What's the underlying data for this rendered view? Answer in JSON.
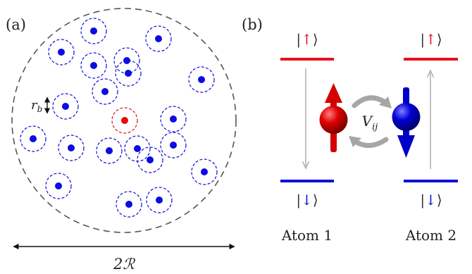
{
  "panel_a": {
    "label": "(a)",
    "radius_label": "r",
    "radius_sub": "b",
    "width_label": "2ℛ"
  },
  "panel_b": {
    "label": "(b)",
    "state_up": "|↑⟩",
    "state_down": "|↓⟩",
    "interaction_label": "V",
    "interaction_sub": "ij",
    "atoms": [
      "Atom 1",
      "Atom 2"
    ]
  },
  "colors": {
    "excited": "#e8101c",
    "ground": "#1010d8",
    "atom_fill": "#0a0ae6",
    "excited_fill": "#e60a0a",
    "boundary": "#555555",
    "transition_arrow": "#b4b4b4"
  }
}
